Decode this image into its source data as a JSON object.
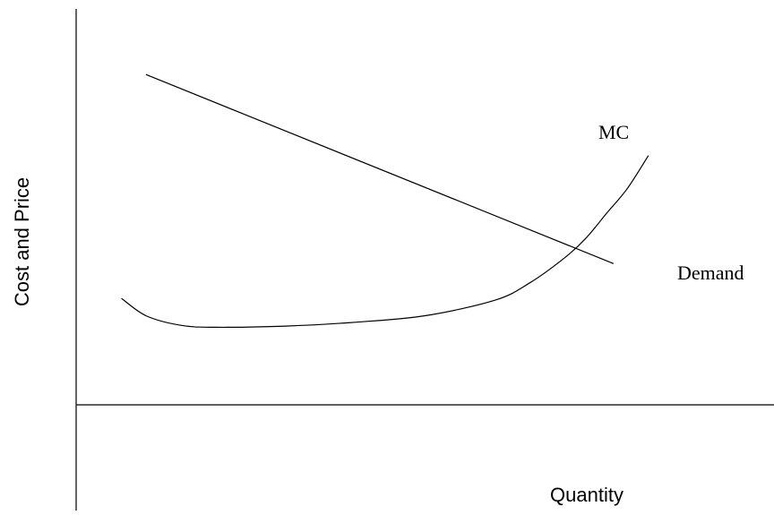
{
  "chart_data": {
    "type": "line",
    "xlabel": "Quantity",
    "ylabel": "Cost and Price",
    "xlim": [
      0,
      10
    ],
    "ylim": [
      -3,
      10
    ],
    "grid": false,
    "legend": "none",
    "series": [
      {
        "name": "Demand",
        "x": [
          1,
          7.7
        ],
        "y": [
          8.3,
          3.4
        ]
      },
      {
        "name": "MC",
        "x": [
          0.65,
          1.0,
          1.5,
          2.0,
          3.0,
          4.0,
          5.0,
          6.0,
          6.5,
          7.0,
          7.3,
          7.6,
          7.9,
          8.2
        ],
        "y": [
          2.5,
          2.05,
          1.8,
          1.75,
          1.78,
          1.88,
          2.05,
          2.45,
          2.9,
          3.55,
          4.05,
          4.7,
          5.35,
          6.2
        ]
      }
    ]
  },
  "colors": {
    "background": "#ffffff",
    "line": "#000000"
  }
}
